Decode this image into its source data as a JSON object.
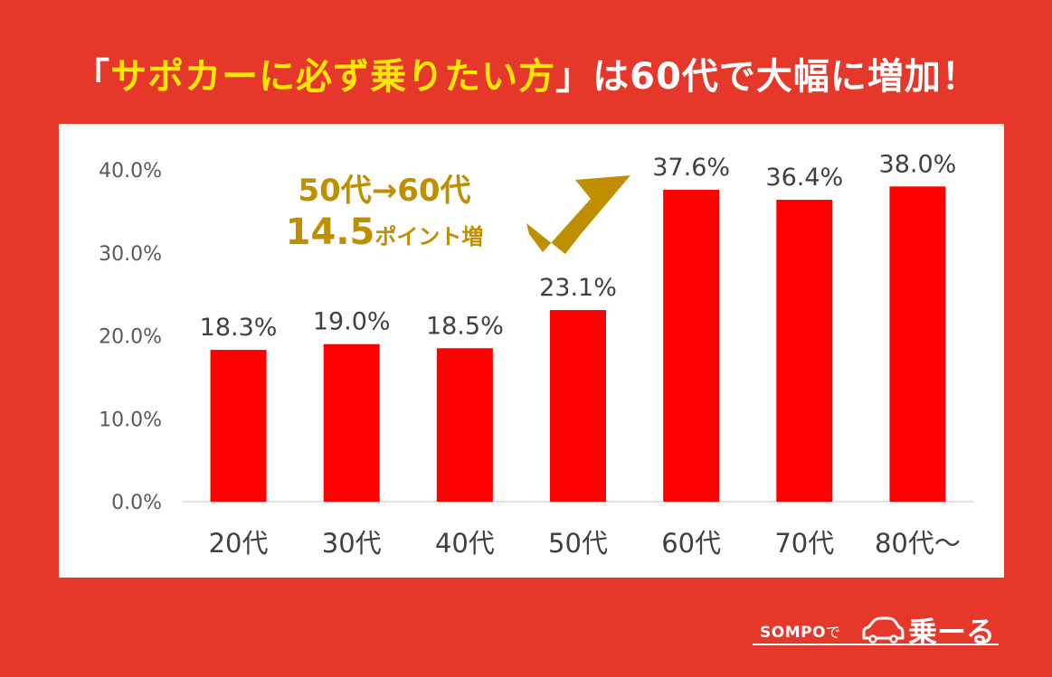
{
  "title": {
    "bracket_open": "「",
    "highlight": "サポカーに必ず乗りたい方",
    "bracket_close": "」",
    "rest": "は60代で大幅に増加！"
  },
  "callout": {
    "line1": "50代→60代",
    "line2_number": "14.5",
    "line2_unit": "ポイント増"
  },
  "chart_data": {
    "type": "bar",
    "title": "「サポカーに必ず乗りたい方」は60代で大幅に増加！",
    "categories": [
      "20代",
      "30代",
      "40代",
      "50代",
      "60代",
      "70代",
      "80代～"
    ],
    "values": [
      18.3,
      19.0,
      18.5,
      23.1,
      37.6,
      36.4,
      38.0
    ],
    "value_labels": [
      "18.3%",
      "19.0%",
      "18.5%",
      "23.1%",
      "37.6%",
      "36.4%",
      "38.0%"
    ],
    "y_ticks": [
      0,
      10,
      20,
      30,
      40
    ],
    "y_tick_labels": [
      "0.0%",
      "10.0%",
      "20.0%",
      "30.0%",
      "40.0%"
    ],
    "ylim": [
      0,
      40
    ],
    "xlabel": "",
    "ylabel": "",
    "grid": false,
    "bar_color": "#FF0000"
  },
  "logo": {
    "brand": "SOMPO",
    "particle": "で",
    "service": "乗ーる"
  },
  "colors": {
    "background": "#E5372A",
    "title_highlight": "#FFE800",
    "callout": "#BF8F00",
    "bar": "#FF0000"
  }
}
